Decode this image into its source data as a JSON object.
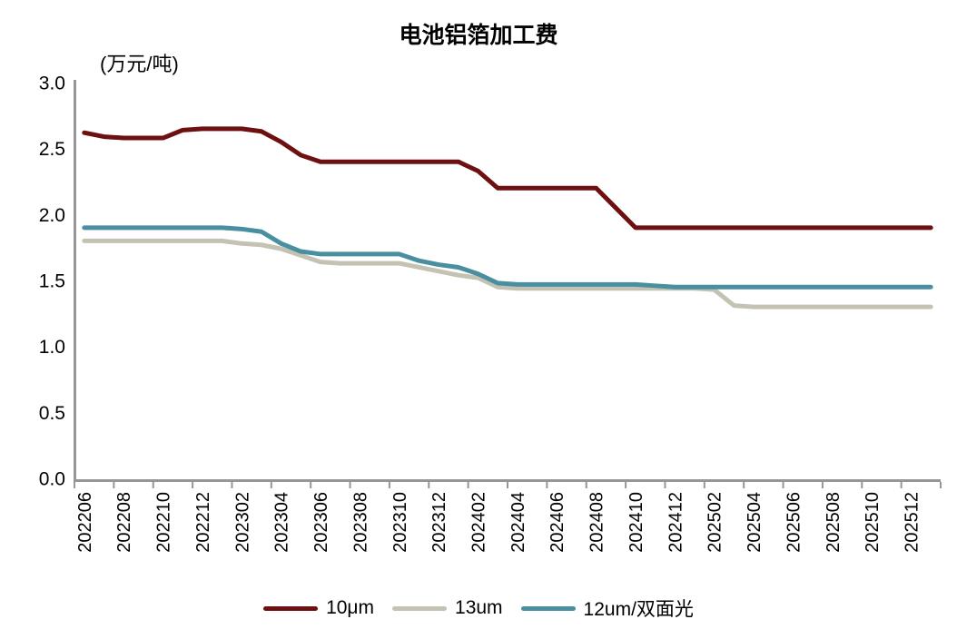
{
  "title": "电池铝箔加工费",
  "unit_label": "(万元/吨)",
  "chart_data": {
    "type": "line",
    "title": "电池铝箔加工费",
    "ylabel": "(万元/吨)",
    "ylim": [
      0.0,
      3.0
    ],
    "yticks": [
      "3.0",
      "2.5",
      "2.0",
      "1.5",
      "1.0",
      "0.5",
      "0.0"
    ],
    "grid": false,
    "legend_position": "bottom",
    "axis_color": "#969696",
    "x_label_every": 2,
    "x": [
      "202206",
      "202207",
      "202208",
      "202209",
      "202210",
      "202211",
      "202212",
      "202301",
      "202302",
      "202303",
      "202304",
      "202305",
      "202306",
      "202307",
      "202308",
      "202309",
      "202310",
      "202311",
      "202312",
      "202401",
      "202402",
      "202403",
      "202404",
      "202405",
      "202406",
      "202407",
      "202408",
      "202409",
      "202410",
      "202411",
      "202412",
      "202501",
      "202502",
      "202503",
      "202504",
      "202505",
      "202506",
      "202507",
      "202508",
      "202509",
      "202510",
      "202511",
      "202512"
    ],
    "series": [
      {
        "name": "10μm",
        "color": "#6E1012",
        "values": [
          2.62,
          2.59,
          2.58,
          2.58,
          2.58,
          2.64,
          2.65,
          2.65,
          2.65,
          2.63,
          2.55,
          2.45,
          2.4,
          2.4,
          2.4,
          2.4,
          2.4,
          2.4,
          2.4,
          2.4,
          2.33,
          2.2,
          2.2,
          2.2,
          2.2,
          2.2,
          2.2,
          2.05,
          1.9,
          1.9,
          1.9,
          1.9,
          1.9,
          1.9,
          1.9,
          1.9,
          1.9,
          1.9,
          1.9,
          1.9,
          1.9,
          1.9,
          1.9
        ]
      },
      {
        "name": "13um",
        "color": "#C4C2B3",
        "values": [
          1.8,
          1.8,
          1.8,
          1.8,
          1.8,
          1.8,
          1.8,
          1.8,
          1.78,
          1.77,
          1.74,
          1.69,
          1.64,
          1.63,
          1.63,
          1.63,
          1.63,
          1.6,
          1.57,
          1.54,
          1.52,
          1.45,
          1.44,
          1.44,
          1.44,
          1.44,
          1.44,
          1.44,
          1.44,
          1.44,
          1.44,
          1.44,
          1.43,
          1.31,
          1.3,
          1.3,
          1.3,
          1.3,
          1.3,
          1.3,
          1.3,
          1.3,
          1.3
        ]
      },
      {
        "name": "12um/双面光",
        "color": "#4A8FA0",
        "values": [
          1.9,
          1.9,
          1.9,
          1.9,
          1.9,
          1.9,
          1.9,
          1.9,
          1.89,
          1.87,
          1.78,
          1.72,
          1.7,
          1.7,
          1.7,
          1.7,
          1.7,
          1.65,
          1.62,
          1.6,
          1.55,
          1.48,
          1.47,
          1.47,
          1.47,
          1.47,
          1.47,
          1.47,
          1.47,
          1.46,
          1.45,
          1.45,
          1.45,
          1.45,
          1.45,
          1.45,
          1.45,
          1.45,
          1.45,
          1.45,
          1.45,
          1.45,
          1.45
        ]
      }
    ]
  }
}
